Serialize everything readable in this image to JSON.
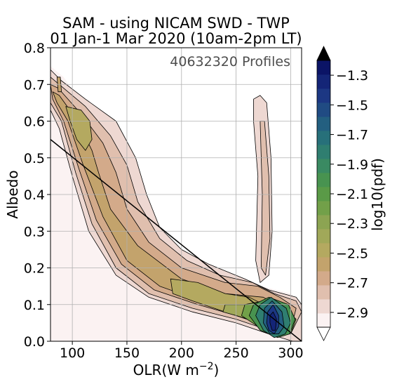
{
  "chart_data": {
    "type": "heatmap",
    "title_line1": "SAM - using NICAM SWD -  TWP",
    "title_line2": "01 Jan-1 Mar 2020 (10am-2pm LT)",
    "annotation": "40632320 Profiles",
    "xlabel_main": "OLR(W m",
    "xlabel_exp": "−2",
    "xlabel_close": ")",
    "ylabel": "Albedo",
    "xlim": [
      80,
      310
    ],
    "ylim": [
      0.0,
      0.8
    ],
    "xticks": [
      100,
      150,
      200,
      250,
      300
    ],
    "yticks": [
      0.0,
      0.1,
      0.2,
      0.3,
      0.4,
      0.5,
      0.6,
      0.7,
      0.8
    ],
    "ytick_labels": [
      "0.0",
      "0.1",
      "0.2",
      "0.3",
      "0.4",
      "0.5",
      "0.6",
      "0.7",
      "0.8"
    ],
    "grid": true,
    "reference_line": {
      "x": [
        80,
        310
      ],
      "y": [
        0.55,
        0.0
      ]
    },
    "colorbar": {
      "label": "log10(pdf)",
      "min": -3.0,
      "max": -1.2,
      "ticks": [
        -2.9,
        -2.7,
        -2.5,
        -2.3,
        -2.1,
        -1.9,
        -1.7,
        -1.5,
        -1.3
      ],
      "tick_labels": [
        "−2.9",
        "−2.7",
        "−2.5",
        "−2.3",
        "−2.1",
        "−1.9",
        "−1.7",
        "−1.5",
        "−1.3"
      ],
      "extend": "both",
      "colors": [
        "#fbf2f2",
        "#eed8d2",
        "#e0bfae",
        "#d3aa8a",
        "#c3a36c",
        "#b4a960",
        "#a1a859",
        "#8ca452",
        "#72a049",
        "#5a9a47",
        "#489350",
        "#3a8a62",
        "#2f7e70",
        "#27707a",
        "#235f80",
        "#204b83",
        "#1c3783",
        "#142577",
        "#0b1466"
      ]
    },
    "regions": [
      {
        "level": -3.0,
        "points": [
          [
            80,
            0.75
          ],
          [
            92,
            0.72
          ],
          [
            120,
            0.6
          ],
          [
            140,
            0.5
          ],
          [
            160,
            0.35
          ],
          [
            200,
            0.22
          ],
          [
            260,
            0.16
          ],
          [
            300,
            0.13
          ],
          [
            310,
            0.1
          ],
          [
            310,
            0.0
          ],
          [
            80,
            0.0
          ]
        ]
      },
      {
        "level": -2.9,
        "points": [
          [
            80,
            0.74
          ],
          [
            90,
            0.71
          ],
          [
            112,
            0.66
          ],
          [
            140,
            0.6
          ],
          [
            158,
            0.5
          ],
          [
            168,
            0.4
          ],
          [
            180,
            0.31
          ],
          [
            200,
            0.25
          ],
          [
            225,
            0.21
          ],
          [
            258,
            0.17
          ],
          [
            280,
            0.14
          ],
          [
            305,
            0.12
          ],
          [
            310,
            0.1
          ],
          [
            310,
            0.0
          ],
          [
            302,
            0.0
          ],
          [
            280,
            0.02
          ],
          [
            250,
            0.05
          ],
          [
            210,
            0.08
          ],
          [
            170,
            0.12
          ],
          [
            140,
            0.18
          ],
          [
            115,
            0.3
          ],
          [
            100,
            0.45
          ],
          [
            88,
            0.58
          ],
          [
            80,
            0.63
          ]
        ]
      },
      {
        "level": -2.9,
        "points": [
          [
            266,
            0.66
          ],
          [
            272,
            0.67
          ],
          [
            278,
            0.65
          ],
          [
            282,
            0.5
          ],
          [
            283,
            0.3
          ],
          [
            280,
            0.18
          ],
          [
            272,
            0.16
          ],
          [
            268,
            0.22
          ],
          [
            270,
            0.45
          ],
          [
            266,
            0.6
          ]
        ]
      },
      {
        "level": -2.8,
        "points": [
          [
            80,
            0.72
          ],
          [
            88,
            0.7
          ],
          [
            112,
            0.64
          ],
          [
            135,
            0.56
          ],
          [
            150,
            0.48
          ],
          [
            160,
            0.38
          ],
          [
            180,
            0.28
          ],
          [
            205,
            0.22
          ],
          [
            235,
            0.18
          ],
          [
            265,
            0.16
          ],
          [
            285,
            0.13
          ],
          [
            305,
            0.11
          ],
          [
            310,
            0.08
          ],
          [
            300,
            0.02
          ],
          [
            280,
            0.03
          ],
          [
            250,
            0.06
          ],
          [
            210,
            0.09
          ],
          [
            170,
            0.13
          ],
          [
            140,
            0.2
          ],
          [
            118,
            0.32
          ],
          [
            103,
            0.46
          ],
          [
            90,
            0.6
          ],
          [
            80,
            0.65
          ]
        ]
      },
      {
        "level": -2.8,
        "points": [
          [
            272,
            0.6
          ],
          [
            276,
            0.6
          ],
          [
            280,
            0.45
          ],
          [
            281,
            0.28
          ],
          [
            277,
            0.18
          ],
          [
            273,
            0.2
          ],
          [
            274,
            0.4
          ]
        ]
      },
      {
        "level": -2.7,
        "points": [
          [
            80,
            0.7
          ],
          [
            87,
            0.69
          ],
          [
            108,
            0.62
          ],
          [
            128,
            0.54
          ],
          [
            140,
            0.46
          ],
          [
            150,
            0.36
          ],
          [
            170,
            0.27
          ],
          [
            200,
            0.2
          ],
          [
            240,
            0.16
          ],
          [
            270,
            0.15
          ],
          [
            290,
            0.12
          ],
          [
            305,
            0.09
          ],
          [
            300,
            0.03
          ],
          [
            280,
            0.04
          ],
          [
            250,
            0.07
          ],
          [
            215,
            0.1
          ],
          [
            175,
            0.14
          ],
          [
            145,
            0.21
          ],
          [
            122,
            0.33
          ],
          [
            106,
            0.47
          ],
          [
            92,
            0.6
          ],
          [
            82,
            0.66
          ]
        ]
      },
      {
        "level": -2.6,
        "points": [
          [
            82,
            0.68
          ],
          [
            88,
            0.67
          ],
          [
            105,
            0.6
          ],
          [
            118,
            0.52
          ],
          [
            124,
            0.46
          ],
          [
            135,
            0.36
          ],
          [
            160,
            0.26
          ],
          [
            200,
            0.17
          ],
          [
            240,
            0.13
          ],
          [
            275,
            0.12
          ],
          [
            298,
            0.08
          ],
          [
            295,
            0.04
          ],
          [
            275,
            0.05
          ],
          [
            250,
            0.08
          ],
          [
            218,
            0.11
          ],
          [
            180,
            0.15
          ],
          [
            150,
            0.22
          ],
          [
            128,
            0.34
          ],
          [
            110,
            0.48
          ],
          [
            96,
            0.6
          ],
          [
            86,
            0.65
          ]
        ]
      },
      {
        "level": -2.6,
        "points": [
          [
            86,
            0.72
          ],
          [
            89,
            0.72
          ],
          [
            90,
            0.68
          ],
          [
            87,
            0.68
          ]
        ]
      },
      {
        "level": -2.5,
        "points": [
          [
            94,
            0.64
          ],
          [
            108,
            0.63
          ],
          [
            116,
            0.6
          ],
          [
            118,
            0.55
          ],
          [
            112,
            0.52
          ],
          [
            104,
            0.55
          ],
          [
            98,
            0.6
          ]
        ]
      },
      {
        "level": -2.5,
        "points": [
          [
            190,
            0.17
          ],
          [
            215,
            0.16
          ],
          [
            240,
            0.13
          ],
          [
            262,
            0.12
          ],
          [
            295,
            0.07
          ],
          [
            290,
            0.04
          ],
          [
            270,
            0.05
          ],
          [
            240,
            0.08
          ],
          [
            210,
            0.11
          ],
          [
            192,
            0.13
          ]
        ]
      },
      {
        "level": -2.4,
        "points": [
          [
            240,
            0.1
          ],
          [
            262,
            0.1
          ],
          [
            285,
            0.09
          ],
          [
            300,
            0.07
          ],
          [
            293,
            0.04
          ],
          [
            272,
            0.05
          ],
          [
            250,
            0.07
          ],
          [
            238,
            0.08
          ]
        ]
      },
      {
        "level": -2.2,
        "points": [
          [
            258,
            0.1
          ],
          [
            275,
            0.11
          ],
          [
            295,
            0.09
          ],
          [
            305,
            0.06
          ],
          [
            300,
            0.02
          ],
          [
            288,
            0.02
          ],
          [
            270,
            0.04
          ],
          [
            255,
            0.07
          ]
        ]
      },
      {
        "level": -2.0,
        "points": [
          [
            266,
            0.1
          ],
          [
            280,
            0.12
          ],
          [
            298,
            0.1
          ],
          [
            304,
            0.06
          ],
          [
            299,
            0.02
          ],
          [
            288,
            0.01
          ],
          [
            272,
            0.03
          ],
          [
            262,
            0.07
          ]
        ]
      },
      {
        "level": -1.8,
        "points": [
          [
            272,
            0.1
          ],
          [
            282,
            0.12
          ],
          [
            296,
            0.09
          ],
          [
            300,
            0.05
          ],
          [
            295,
            0.02
          ],
          [
            285,
            0.01
          ],
          [
            275,
            0.03
          ],
          [
            268,
            0.07
          ]
        ]
      },
      {
        "level": -1.6,
        "points": [
          [
            276,
            0.09
          ],
          [
            283,
            0.11
          ],
          [
            292,
            0.08
          ],
          [
            294,
            0.04
          ],
          [
            289,
            0.02
          ],
          [
            281,
            0.02
          ],
          [
            275,
            0.05
          ]
        ]
      },
      {
        "level": -1.4,
        "points": [
          [
            279,
            0.08
          ],
          [
            284,
            0.1
          ],
          [
            289,
            0.07
          ],
          [
            289,
            0.04
          ],
          [
            285,
            0.02
          ],
          [
            280,
            0.03
          ],
          [
            278,
            0.05
          ]
        ]
      },
      {
        "level": -1.3,
        "points": [
          [
            281,
            0.07
          ],
          [
            284,
            0.08
          ],
          [
            287,
            0.06
          ],
          [
            286,
            0.03
          ],
          [
            283,
            0.03
          ],
          [
            281,
            0.05
          ]
        ]
      }
    ]
  }
}
